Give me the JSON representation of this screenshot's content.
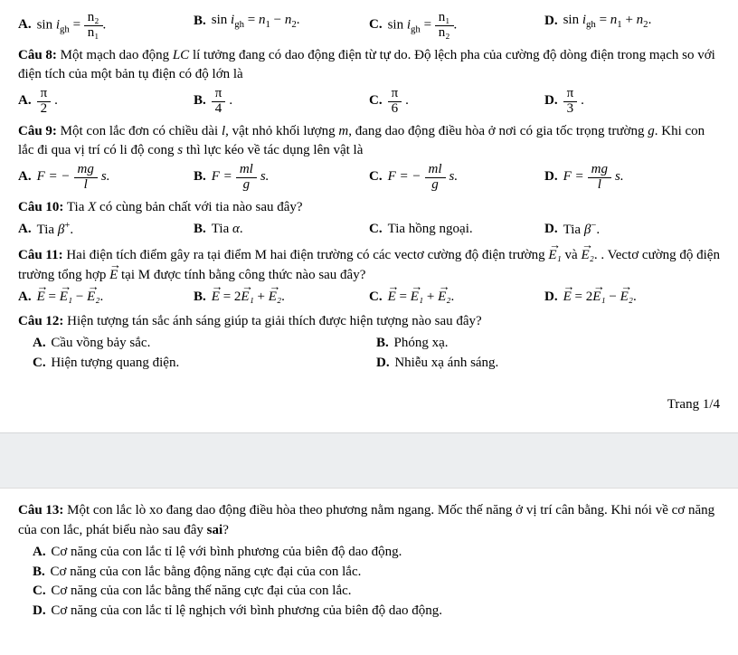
{
  "prev_options": {
    "A": {
      "label": "A.",
      "prefix": "sin ",
      "var": "i",
      "subvar": "gh",
      "eq": " = ",
      "num": "n₂",
      "den": "n₁",
      "suffix": "."
    },
    "B": {
      "label": "B.",
      "text": "sin i_gh = n₁ − n₂."
    },
    "C": {
      "label": "C.",
      "prefix": "sin ",
      "var": "i",
      "subvar": "gh",
      "eq": " = ",
      "num": "n₁",
      "den": "n₂",
      "suffix": "."
    },
    "D": {
      "label": "D.",
      "text": "sin i_gh = n₁ + n₂."
    }
  },
  "questions": [
    {
      "id": "q8",
      "number": "Câu 8:",
      "text": " Một mạch dao động LC lí tưởng đang có dao động điện từ tự do. Độ lệch pha của cường độ dòng điện trong mạch so với điện tích của một bản tụ điện có độ lớn là",
      "options": [
        {
          "label": "A.",
          "num": "π",
          "den": "2",
          "suffix": "."
        },
        {
          "label": "B.",
          "num": "π",
          "den": "4",
          "suffix": "."
        },
        {
          "label": "C.",
          "num": "π",
          "den": "6",
          "suffix": "."
        },
        {
          "label": "D.",
          "num": "π",
          "den": "3",
          "suffix": "."
        }
      ]
    },
    {
      "id": "q9",
      "number": "Câu 9:",
      "text": " Một con lắc đơn có chiều dài l, vật nhỏ khối lượng m, đang dao động điều hòa ở nơi có gia tốc trọng trường g. Khi con lắc đi qua vị trí có li độ cong s thì lực kéo về tác dụng lên vật là",
      "options": [
        {
          "label": "A.",
          "prefix": "F =  − ",
          "num": "mg",
          "den": "l",
          "suffix": " s."
        },
        {
          "label": "B.",
          "prefix": "F = ",
          "num": "ml",
          "den": "g",
          "suffix": " s."
        },
        {
          "label": "C.",
          "prefix": "F =  − ",
          "num": "ml",
          "den": "g",
          "suffix": " s."
        },
        {
          "label": "D.",
          "prefix": "F = ",
          "num": "mg",
          "den": "l",
          "suffix": " s."
        }
      ]
    },
    {
      "id": "q10",
      "number": "Câu 10:",
      "text": " Tia X có cùng bản chất với tia nào sau đây?",
      "options": [
        {
          "label": "A.",
          "text": "Tia β⁺."
        },
        {
          "label": "B.",
          "text": "Tia α."
        },
        {
          "label": "C.",
          "text": "Tia hồng ngoại."
        },
        {
          "label": "D.",
          "text": "Tia β⁻."
        }
      ]
    },
    {
      "id": "q11",
      "number": "Câu 11:",
      "text_pre": " Hai điện tích điểm gây ra tại điểm M hai điện trường có các vectơ cường độ điện trường ",
      "vec1": "E₁",
      "text_mid": " và ",
      "vec2": "E₂",
      "text_post": ". Vectơ cường độ điện trường tổng hợp ",
      "vec3": "E",
      "text_end": " tại M được tính bằng công thức nào sau đây?",
      "options": [
        {
          "label": "A.",
          "vecL": "E",
          "eq": " = ",
          "vecR1": "E₁",
          "op": " − ",
          "vecR2": "E₂",
          "suffix": "."
        },
        {
          "label": "B.",
          "vecL": "E",
          "eq": " = 2",
          "vecR1": "E₁",
          "op": " + ",
          "vecR2": "E₂",
          "suffix": "."
        },
        {
          "label": "C.",
          "vecL": "E",
          "eq": " = ",
          "vecR1": "E₁",
          "op": " + ",
          "vecR2": "E₂",
          "suffix": "."
        },
        {
          "label": "D.",
          "vecL": "E",
          "eq": " = 2",
          "vecR1": "E₁",
          "op": " − ",
          "vecR2": "E₂",
          "suffix": "."
        }
      ]
    },
    {
      "id": "q12",
      "number": "Câu 12:",
      "text": " Hiện tượng tán sắc ánh sáng giúp ta giải thích được hiện tượng nào sau đây?",
      "options": [
        {
          "label": "A.",
          "text": "Cầu vồng bảy sắc."
        },
        {
          "label": "B.",
          "text": "Phóng xạ."
        },
        {
          "label": "C.",
          "text": "Hiện tượng quang điện."
        },
        {
          "label": "D.",
          "text": "Nhiễu xạ ánh sáng."
        }
      ]
    }
  ],
  "page_number": "Trang 1/4",
  "q13": {
    "number": "Câu 13:",
    "text": " Một con lắc lò xo đang dao động điều hòa theo phương nằm ngang. Mốc thế năng ở vị trí cân bằng. Khi nói về cơ năng của con lắc, phát biểu nào sau đây ",
    "sai": "sai",
    "qmark": "?",
    "options": [
      {
        "label": "A.",
        "text": "Cơ năng của con lắc tỉ lệ với bình phương của biên độ dao động."
      },
      {
        "label": "B.",
        "text": "Cơ năng của con lắc bằng động năng cực đại của con lắc."
      },
      {
        "label": "C.",
        "text": "Cơ năng của con lắc bằng thế năng cực đại của con lắc."
      },
      {
        "label": "D.",
        "text": "Cơ năng của con lắc tỉ lệ nghịch với bình phương của biên độ dao động."
      }
    ]
  }
}
